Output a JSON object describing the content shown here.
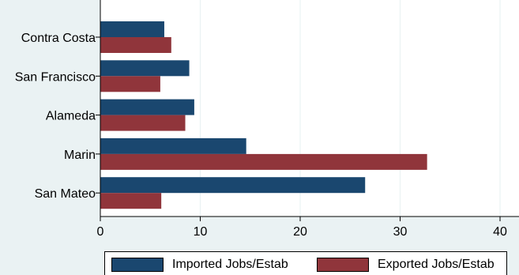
{
  "chart_data": {
    "type": "bar",
    "orientation": "horizontal",
    "categories": [
      "Contra Costa",
      "San Francisco",
      "Alameda",
      "Marin",
      "San Mateo"
    ],
    "series": [
      {
        "name": "Imported Jobs/Estab",
        "color": "#1a476f",
        "values": [
          6.4,
          8.9,
          9.4,
          14.6,
          26.5
        ]
      },
      {
        "name": "Exported Jobs/Estab",
        "color": "#90353b",
        "values": [
          7.1,
          6.0,
          8.5,
          32.7,
          6.1
        ]
      }
    ],
    "xlim": [
      0,
      40
    ],
    "xticks": [
      "0",
      "10",
      "20",
      "30",
      "40"
    ],
    "grid": true,
    "legend_position": "bottom"
  }
}
